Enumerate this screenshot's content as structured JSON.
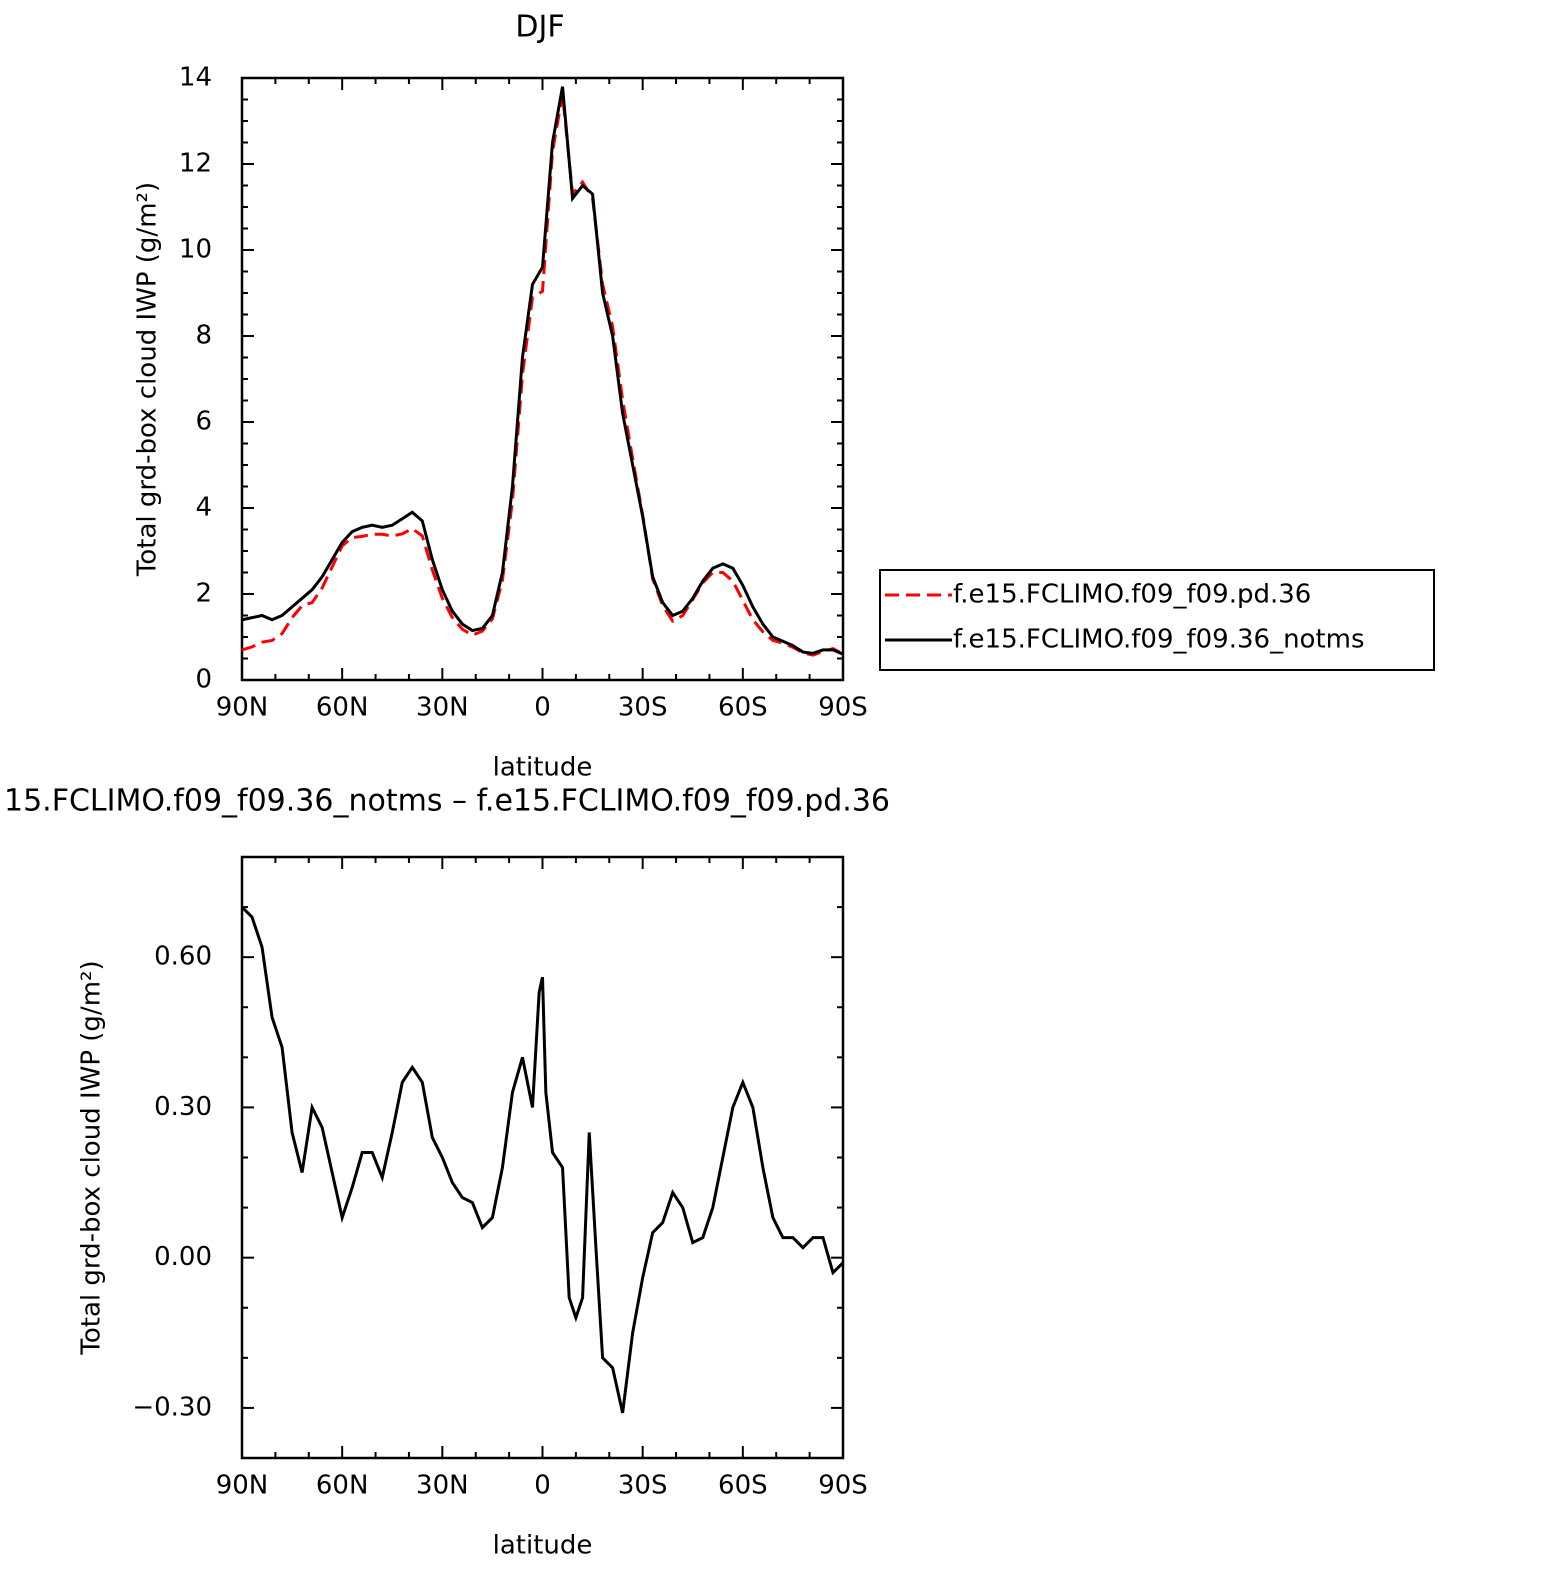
{
  "chart_data": [
    {
      "type": "line",
      "title": "DJF",
      "x_label": "latitude",
      "y_label": "Total grd-box cloud IWP (g/m²)",
      "x": [
        90,
        87,
        84,
        81,
        78,
        75,
        72,
        69,
        66,
        63,
        60,
        57,
        54,
        51,
        48,
        45,
        42,
        39,
        36,
        33,
        30,
        27,
        24,
        21,
        18,
        15,
        12,
        9,
        6,
        3,
        0,
        -3,
        -6,
        -9,
        -12,
        -15,
        -18,
        -21,
        -24,
        -27,
        -30,
        -33,
        -36,
        -39,
        -42,
        -45,
        -48,
        -51,
        -54,
        -57,
        -60,
        -63,
        -66,
        -69,
        -72,
        -75,
        -78,
        -81,
        -84,
        -87,
        -90
      ],
      "series": [
        {
          "name": "f.e15.FCLIMO.f09_f09.pd.36",
          "color": "#ff0000",
          "line_style": "dashed",
          "values": [
            0.7,
            0.77,
            0.88,
            0.92,
            1.08,
            1.45,
            1.73,
            1.8,
            2.14,
            2.63,
            3.12,
            3.31,
            3.34,
            3.39,
            3.39,
            3.35,
            3.4,
            3.52,
            3.35,
            2.56,
            1.9,
            1.45,
            1.18,
            1.04,
            1.14,
            1.42,
            2.32,
            4.17,
            7.1,
            8.9,
            9.04,
            12.29,
            13.62,
            11.3,
            11.58,
            11.2,
            9.2,
            8.22,
            6.51,
            5.15,
            3.84,
            2.35,
            1.73,
            1.37,
            1.5,
            1.87,
            2.26,
            2.5,
            2.5,
            2.3,
            1.85,
            1.4,
            1.12,
            0.92,
            0.86,
            0.76,
            0.63,
            0.58,
            0.66,
            0.73,
            0.61
          ]
        },
        {
          "name": "f.e15.FCLIMO.f09_f09.36_notms",
          "color": "#000000",
          "line_style": "solid",
          "values": [
            1.4,
            1.45,
            1.5,
            1.4,
            1.5,
            1.7,
            1.9,
            2.1,
            2.4,
            2.8,
            3.2,
            3.45,
            3.55,
            3.6,
            3.55,
            3.6,
            3.75,
            3.9,
            3.7,
            2.8,
            2.1,
            1.6,
            1.3,
            1.15,
            1.2,
            1.5,
            2.5,
            4.5,
            7.5,
            9.2,
            9.6,
            12.5,
            13.8,
            11.2,
            11.5,
            11.3,
            9.0,
            8.0,
            6.2,
            5.0,
            3.8,
            2.4,
            1.8,
            1.5,
            1.6,
            1.9,
            2.3,
            2.6,
            2.7,
            2.6,
            2.2,
            1.7,
            1.3,
            1.0,
            0.9,
            0.8,
            0.65,
            0.62,
            0.7,
            0.7,
            0.6
          ]
        }
      ],
      "xlim": [
        90,
        -90
      ],
      "xticks": [
        {
          "value": 90,
          "label": "90N"
        },
        {
          "value": 60,
          "label": "60N"
        },
        {
          "value": 30,
          "label": "30N"
        },
        0,
        {
          "value": -30,
          "label": "30S"
        },
        {
          "value": -60,
          "label": "60S"
        },
        {
          "value": -90,
          "label": "90S"
        }
      ],
      "ylim": [
        0,
        14
      ],
      "yticks": [
        0,
        2,
        4,
        6,
        8,
        10,
        12,
        14
      ],
      "legend": "right"
    },
    {
      "type": "line",
      "title": "15.FCLIMO.f09_f09.36_notms – f.e15.FCLIMO.f09_f09.pd.36",
      "x_label": "latitude",
      "y_label": "Total grd-box cloud IWP (g/m²)",
      "x": [
        90,
        87,
        84,
        81,
        78,
        75,
        72,
        69,
        66,
        63,
        60,
        57,
        54,
        51,
        48,
        45,
        42,
        39,
        36,
        33,
        30,
        27,
        24,
        21,
        18,
        15,
        12,
        9,
        6,
        3,
        1,
        0,
        -1,
        -3,
        -6,
        -8,
        -10,
        -12,
        -14,
        -16,
        -18,
        -21,
        -24,
        -27,
        -30,
        -33,
        -36,
        -39,
        -42,
        -45,
        -48,
        -51,
        -54,
        -57,
        -60,
        -63,
        -66,
        -69,
        -72,
        -75,
        -78,
        -81,
        -84,
        -87,
        -90
      ],
      "values": [
        0.7,
        0.68,
        0.62,
        0.48,
        0.42,
        0.25,
        0.17,
        0.3,
        0.26,
        0.17,
        0.08,
        0.14,
        0.21,
        0.21,
        0.16,
        0.25,
        0.35,
        0.38,
        0.35,
        0.24,
        0.2,
        0.15,
        0.12,
        0.11,
        0.06,
        0.08,
        0.18,
        0.33,
        0.4,
        0.3,
        0.53,
        0.56,
        0.33,
        0.21,
        0.18,
        -0.08,
        -0.12,
        -0.08,
        0.25,
        0.02,
        -0.2,
        -0.22,
        -0.31,
        -0.15,
        -0.04,
        0.05,
        0.07,
        0.13,
        0.1,
        0.03,
        0.04,
        0.1,
        0.2,
        0.3,
        0.35,
        0.3,
        0.18,
        0.08,
        0.04,
        0.04,
        0.02,
        0.04,
        0.04,
        -0.03,
        -0.01
      ],
      "color": "#000000",
      "xlim": [
        90,
        -90
      ],
      "xticks": [
        {
          "value": 90,
          "label": "90N"
        },
        {
          "value": 60,
          "label": "60N"
        },
        {
          "value": 30,
          "label": "30N"
        },
        0,
        {
          "value": -30,
          "label": "30S"
        },
        {
          "value": -60,
          "label": "60S"
        },
        {
          "value": -90,
          "label": "90S"
        }
      ],
      "ylim": [
        -0.4,
        0.8
      ],
      "yticks": [
        {
          "value": -0.3,
          "label": "−0.30"
        },
        {
          "value": 0,
          "label": "0.00"
        },
        {
          "value": 0.3,
          "label": "0.30"
        },
        {
          "value": 0.6,
          "label": "0.60"
        }
      ]
    }
  ]
}
